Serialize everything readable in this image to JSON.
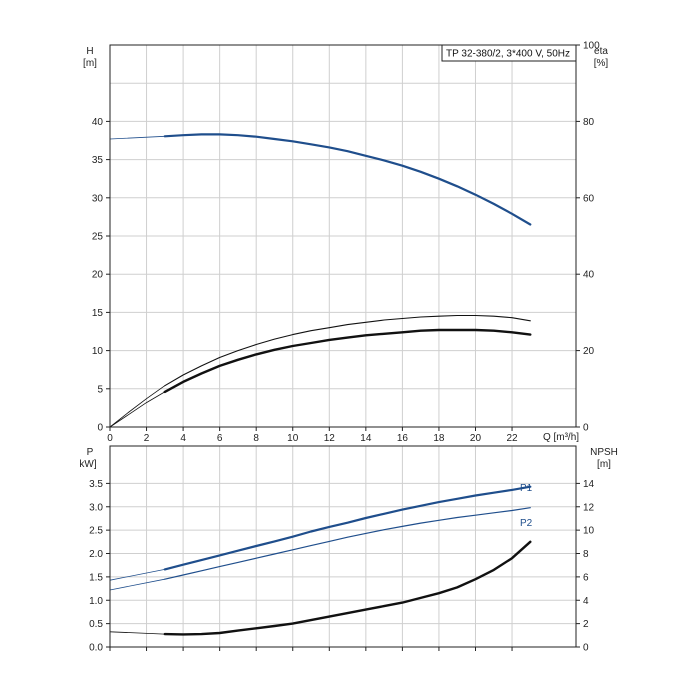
{
  "chart_data": [
    {
      "type": "line",
      "legend_text": "TP 32-380/2, 3*400 V, 50Hz",
      "legend_position": "top-right",
      "grid": true,
      "left_axis": {
        "name": "H",
        "unit": "[m]",
        "ticks": [
          0,
          5,
          10,
          15,
          20,
          25,
          30,
          35,
          40
        ],
        "range": [
          0,
          50
        ]
      },
      "right_axis": {
        "name": "eta",
        "unit": "[%]",
        "ticks": [
          0,
          20,
          40,
          60,
          80,
          100
        ],
        "range": [
          0,
          100
        ]
      },
      "x_axis": {
        "label": "Q [m³/h]",
        "ticks": [
          0,
          2,
          4,
          6,
          8,
          10,
          12,
          14,
          16,
          18,
          20,
          22
        ],
        "range": [
          0,
          25.5
        ]
      },
      "series": [
        {
          "key": "H",
          "axis": "left",
          "color": "#1f4e8c",
          "width": 2.2,
          "extension_x": [
            0,
            3
          ],
          "extension_y": [
            37.7,
            38.05
          ],
          "x": [
            3,
            4,
            5,
            6,
            7,
            8,
            9,
            10,
            11,
            12,
            13,
            14,
            15,
            16,
            17,
            18,
            19,
            20,
            21,
            22,
            23
          ],
          "y": [
            38.05,
            38.2,
            38.3,
            38.3,
            38.2,
            38.0,
            37.7,
            37.4,
            37.0,
            36.6,
            36.1,
            35.5,
            34.9,
            34.2,
            33.4,
            32.5,
            31.5,
            30.4,
            29.2,
            27.9,
            26.5
          ]
        },
        {
          "key": "eta_thin",
          "axis": "left",
          "color": "#111111",
          "width": 1.1,
          "extension_x": [
            0,
            1,
            2,
            3
          ],
          "extension_y": [
            0,
            1.9,
            3.7,
            5.4
          ],
          "x": [
            3,
            4,
            5,
            6,
            7,
            8,
            9,
            10,
            11,
            12,
            13,
            14,
            15,
            16,
            17,
            18,
            19,
            20,
            21,
            22,
            23
          ],
          "y": [
            5.4,
            6.8,
            8.0,
            9.1,
            10.0,
            10.8,
            11.5,
            12.1,
            12.6,
            13.0,
            13.4,
            13.7,
            14.0,
            14.2,
            14.4,
            14.5,
            14.6,
            14.6,
            14.5,
            14.3,
            13.9
          ]
        },
        {
          "key": "eta_thick",
          "axis": "left",
          "color": "#111111",
          "width": 2.4,
          "extension_x": [
            0,
            1,
            2,
            3
          ],
          "extension_y": [
            0,
            1.6,
            3.2,
            4.6
          ],
          "x": [
            3,
            4,
            5,
            6,
            7,
            8,
            9,
            10,
            11,
            12,
            13,
            14,
            15,
            16,
            17,
            18,
            19,
            20,
            21,
            22,
            23
          ],
          "y": [
            4.6,
            5.9,
            7.0,
            8.0,
            8.8,
            9.5,
            10.1,
            10.6,
            11.0,
            11.4,
            11.7,
            12.0,
            12.2,
            12.4,
            12.6,
            12.7,
            12.7,
            12.7,
            12.6,
            12.4,
            12.1
          ]
        }
      ]
    },
    {
      "type": "line",
      "grid": true,
      "left_axis": {
        "name": "P",
        "unit": "kW]",
        "ticks": [
          "0.0",
          "0.5",
          "1.0",
          "1.5",
          "2.0",
          "2.5",
          "3.0",
          "3.5"
        ],
        "range": [
          0,
          4.3
        ]
      },
      "right_axis": {
        "name": "NPSH",
        "unit": "[m]",
        "ticks": [
          0,
          2,
          4,
          6,
          8,
          10,
          12,
          14
        ],
        "range": [
          0,
          17.2
        ]
      },
      "x_axis": {
        "range": [
          0,
          25.5
        ]
      },
      "series": [
        {
          "key": "P1",
          "name": "P1",
          "axis": "left",
          "color": "#1f4e8c",
          "width": 2.2,
          "extension_x": [
            0,
            3
          ],
          "extension_y": [
            1.43,
            1.66
          ],
          "x": [
            3,
            4,
            5,
            6,
            7,
            8,
            9,
            10,
            11,
            12,
            13,
            14,
            15,
            16,
            17,
            18,
            19,
            20,
            21,
            22,
            23
          ],
          "y": [
            1.66,
            1.76,
            1.86,
            1.96,
            2.06,
            2.16,
            2.26,
            2.36,
            2.47,
            2.57,
            2.66,
            2.76,
            2.85,
            2.94,
            3.02,
            3.1,
            3.17,
            3.24,
            3.3,
            3.36,
            3.43
          ]
        },
        {
          "key": "P2",
          "name": "P2",
          "axis": "left",
          "color": "#1f4e8c",
          "width": 1.2,
          "extension_x": [
            0,
            3
          ],
          "extension_y": [
            1.22,
            1.45
          ],
          "x": [
            3,
            4,
            5,
            6,
            7,
            8,
            9,
            10,
            11,
            12,
            13,
            14,
            15,
            16,
            17,
            18,
            19,
            20,
            21,
            22,
            23
          ],
          "y": [
            1.45,
            1.54,
            1.63,
            1.72,
            1.81,
            1.9,
            1.99,
            2.08,
            2.17,
            2.26,
            2.35,
            2.43,
            2.51,
            2.58,
            2.65,
            2.71,
            2.77,
            2.82,
            2.87,
            2.92,
            2.98
          ]
        },
        {
          "key": "NPSH",
          "axis": "right",
          "color": "#111111",
          "width": 2.4,
          "extension_x": [
            0,
            3
          ],
          "extension_y": [
            1.3,
            1.1
          ],
          "x": [
            3,
            4,
            5,
            6,
            7,
            8,
            9,
            10,
            11,
            12,
            13,
            14,
            15,
            16,
            17,
            18,
            19,
            20,
            21,
            22,
            23
          ],
          "y": [
            1.1,
            1.08,
            1.1,
            1.2,
            1.4,
            1.6,
            1.8,
            2.0,
            2.3,
            2.6,
            2.9,
            3.2,
            3.5,
            3.8,
            4.2,
            4.6,
            5.1,
            5.8,
            6.6,
            7.6,
            9.0
          ]
        }
      ]
    }
  ]
}
